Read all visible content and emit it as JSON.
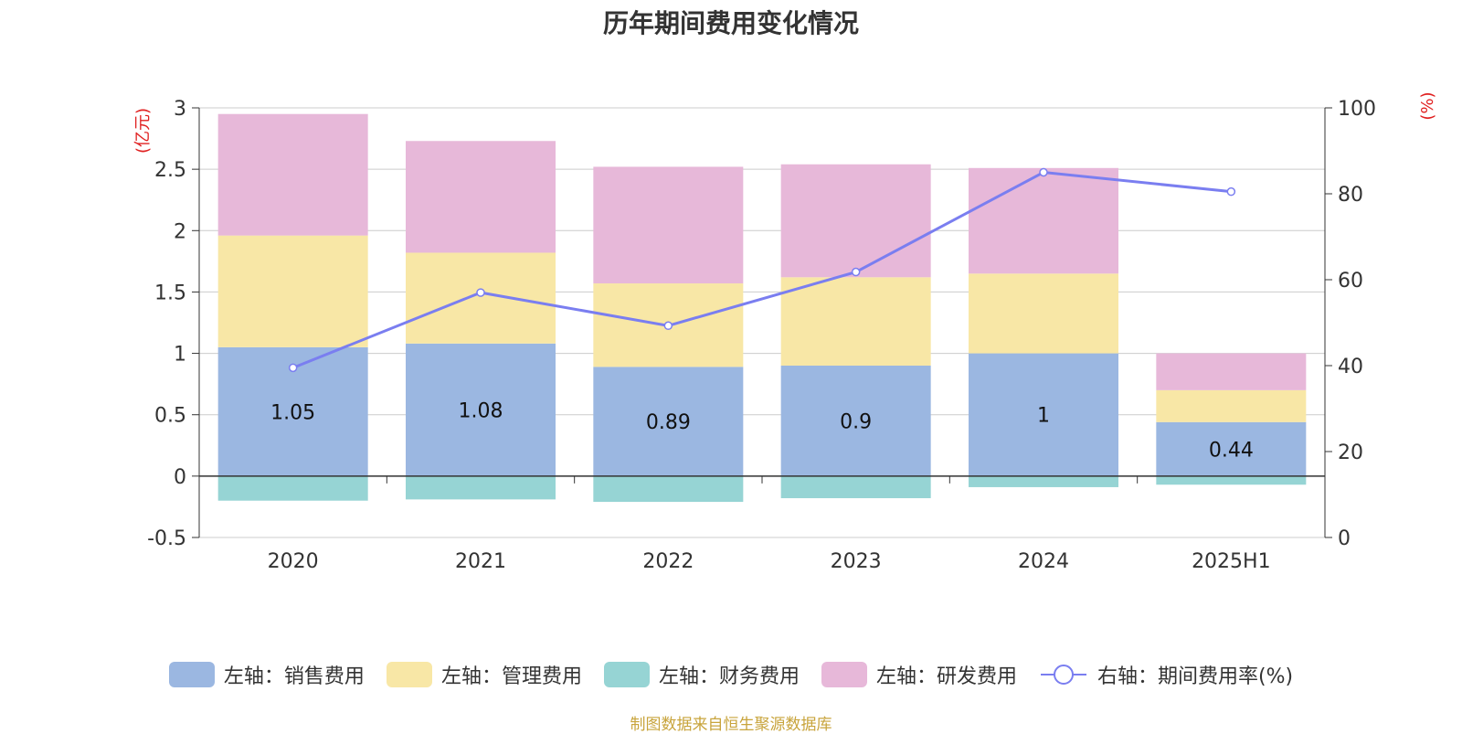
{
  "title": "历年期间费用变化情况",
  "source": "制图数据来自恒生聚源数据库",
  "colors": {
    "sales": "#9bb7e1",
    "admin": "#f8e7a6",
    "finance": "#96d4d4",
    "rd": "#e7b8d9",
    "line": "#7a7ef0",
    "unit": "#e02020",
    "source": "#c8a43c"
  },
  "chart_data": {
    "type": "bar",
    "title": "历年期间费用变化情况",
    "categories": [
      "2020",
      "2021",
      "2022",
      "2023",
      "2024",
      "2025H1"
    ],
    "left_axis": {
      "unit": "(亿元)",
      "ylim": [
        -0.5,
        3
      ],
      "ticks": [
        -0.5,
        0,
        0.5,
        1,
        1.5,
        2,
        2.5,
        3
      ],
      "tick_labels": [
        "-0.5",
        "0",
        "0.5",
        "1",
        "1.5",
        "2",
        "2.5",
        "3"
      ]
    },
    "right_axis": {
      "unit": "(%)",
      "ylim": [
        0,
        100
      ],
      "ticks": [
        0,
        20,
        40,
        60,
        80,
        100
      ],
      "tick_labels": [
        "0",
        "20",
        "40",
        "60",
        "80",
        "100"
      ]
    },
    "series": [
      {
        "name": "左轴：销售费用",
        "type": "bar",
        "stack": true,
        "axis": "left",
        "color_key": "sales",
        "values": [
          1.05,
          1.08,
          0.89,
          0.9,
          1.0,
          0.44
        ],
        "labels": [
          "1.05",
          "1.08",
          "0.89",
          "0.9",
          "1",
          "0.44"
        ]
      },
      {
        "name": "左轴：管理费用",
        "type": "bar",
        "stack": true,
        "axis": "left",
        "color_key": "admin",
        "values": [
          0.91,
          0.74,
          0.68,
          0.72,
          0.65,
          0.26
        ]
      },
      {
        "name": "左轴：财务费用",
        "type": "bar",
        "stack": true,
        "axis": "left",
        "color_key": "finance",
        "values": [
          -0.2,
          -0.19,
          -0.21,
          -0.18,
          -0.09,
          -0.07
        ]
      },
      {
        "name": "左轴：研发费用",
        "type": "bar",
        "stack": true,
        "axis": "left",
        "color_key": "rd",
        "values": [
          0.99,
          0.91,
          0.95,
          0.92,
          0.86,
          0.3
        ]
      },
      {
        "name": "右轴：期间费用率(%)",
        "type": "line",
        "axis": "right",
        "color_key": "line",
        "values": [
          39.5,
          57.0,
          49.3,
          61.8,
          85.0,
          80.5
        ]
      }
    ],
    "grid": true,
    "legend_position": "bottom"
  }
}
